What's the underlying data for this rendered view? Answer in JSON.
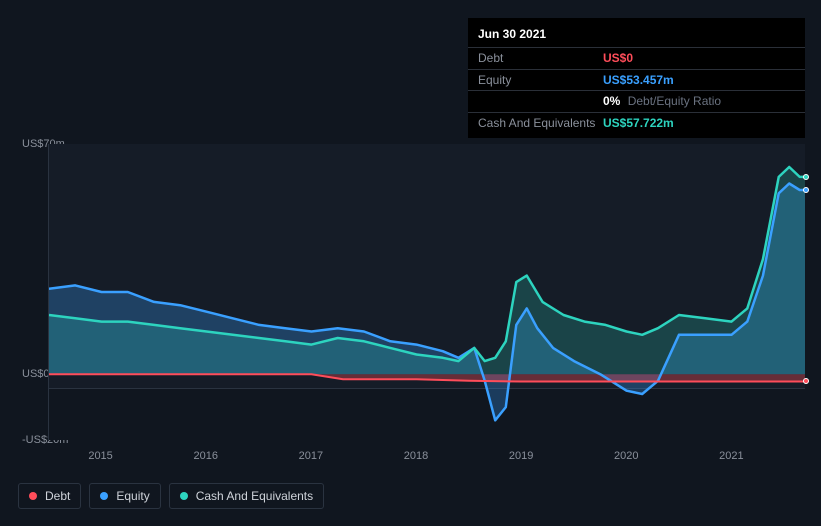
{
  "tooltip": {
    "date": "Jun 30 2021",
    "debt_label": "Debt",
    "debt_value": "US$0",
    "equity_label": "Equity",
    "equity_value": "US$53.457m",
    "ratio_value": "0%",
    "ratio_label": "Debt/Equity Ratio",
    "cash_label": "Cash And Equivalents",
    "cash_value": "US$57.722m"
  },
  "chart": {
    "type": "area",
    "y_range": [
      -20,
      70
    ],
    "y_ticks": [
      {
        "value": 70,
        "label": "US$70m"
      },
      {
        "value": 0,
        "label": "US$0"
      },
      {
        "value": -20,
        "label": "-US$20m"
      }
    ],
    "x_domain_years": [
      2014.5,
      2021.7
    ],
    "x_ticks": [
      "2015",
      "2016",
      "2017",
      "2018",
      "2019",
      "2020",
      "2021"
    ],
    "background_color": "#151c27",
    "page_background_color": "#10161f",
    "grid_color": "#2a3340",
    "series": {
      "debt": {
        "label": "Debt",
        "color": "#ff4d5a",
        "fill_opacity": 0.35,
        "stroke_width": 2,
        "data": [
          [
            2014.5,
            0
          ],
          [
            2015,
            0
          ],
          [
            2015.5,
            0
          ],
          [
            2016,
            0
          ],
          [
            2016.5,
            0
          ],
          [
            2017,
            0
          ],
          [
            2017.3,
            -1.5
          ],
          [
            2017.7,
            -1.5
          ],
          [
            2018,
            -1.5
          ],
          [
            2018.5,
            -2
          ],
          [
            2019,
            -2.2
          ],
          [
            2019.5,
            -2.2
          ],
          [
            2020,
            -2.2
          ],
          [
            2020.5,
            -2.2
          ],
          [
            2021,
            -2.2
          ],
          [
            2021.5,
            -2.2
          ],
          [
            2021.7,
            -2.2
          ]
        ]
      },
      "equity": {
        "label": "Equity",
        "color": "#3aa0ff",
        "fill_opacity": 0.28,
        "stroke_width": 2.5,
        "data": [
          [
            2014.5,
            26
          ],
          [
            2014.75,
            27
          ],
          [
            2015,
            25
          ],
          [
            2015.25,
            25
          ],
          [
            2015.5,
            22
          ],
          [
            2015.75,
            21
          ],
          [
            2016,
            19
          ],
          [
            2016.25,
            17
          ],
          [
            2016.5,
            15
          ],
          [
            2016.75,
            14
          ],
          [
            2017,
            13
          ],
          [
            2017.25,
            14
          ],
          [
            2017.5,
            13
          ],
          [
            2017.75,
            10
          ],
          [
            2018,
            9
          ],
          [
            2018.25,
            7
          ],
          [
            2018.4,
            5
          ],
          [
            2018.55,
            8
          ],
          [
            2018.65,
            -2
          ],
          [
            2018.75,
            -14
          ],
          [
            2018.85,
            -10
          ],
          [
            2018.95,
            15
          ],
          [
            2019.05,
            20
          ],
          [
            2019.15,
            14
          ],
          [
            2019.3,
            8
          ],
          [
            2019.5,
            4
          ],
          [
            2019.75,
            0
          ],
          [
            2020,
            -5
          ],
          [
            2020.15,
            -6
          ],
          [
            2020.3,
            -2
          ],
          [
            2020.5,
            12
          ],
          [
            2020.75,
            12
          ],
          [
            2021,
            12
          ],
          [
            2021.15,
            16
          ],
          [
            2021.3,
            30
          ],
          [
            2021.45,
            55
          ],
          [
            2021.55,
            58
          ],
          [
            2021.65,
            56
          ],
          [
            2021.7,
            56
          ]
        ]
      },
      "cash": {
        "label": "Cash And Equivalents",
        "color": "#2dd4bf",
        "fill_opacity": 0.22,
        "stroke_width": 2.5,
        "data": [
          [
            2014.5,
            18
          ],
          [
            2014.75,
            17
          ],
          [
            2015,
            16
          ],
          [
            2015.25,
            16
          ],
          [
            2015.5,
            15
          ],
          [
            2015.75,
            14
          ],
          [
            2016,
            13
          ],
          [
            2016.25,
            12
          ],
          [
            2016.5,
            11
          ],
          [
            2016.75,
            10
          ],
          [
            2017,
            9
          ],
          [
            2017.25,
            11
          ],
          [
            2017.5,
            10
          ],
          [
            2017.75,
            8
          ],
          [
            2018,
            6
          ],
          [
            2018.25,
            5
          ],
          [
            2018.4,
            4
          ],
          [
            2018.55,
            8
          ],
          [
            2018.65,
            4
          ],
          [
            2018.75,
            5
          ],
          [
            2018.85,
            10
          ],
          [
            2018.95,
            28
          ],
          [
            2019.05,
            30
          ],
          [
            2019.2,
            22
          ],
          [
            2019.4,
            18
          ],
          [
            2019.6,
            16
          ],
          [
            2019.8,
            15
          ],
          [
            2020,
            13
          ],
          [
            2020.15,
            12
          ],
          [
            2020.3,
            14
          ],
          [
            2020.5,
            18
          ],
          [
            2020.75,
            17
          ],
          [
            2021,
            16
          ],
          [
            2021.15,
            20
          ],
          [
            2021.3,
            35
          ],
          [
            2021.45,
            60
          ],
          [
            2021.55,
            63
          ],
          [
            2021.65,
            60
          ],
          [
            2021.7,
            60
          ]
        ]
      }
    },
    "end_markers": [
      {
        "series": "cash",
        "x": 2021.7,
        "y": 60
      },
      {
        "series": "equity",
        "x": 2021.7,
        "y": 56
      },
      {
        "series": "debt",
        "x": 2021.7,
        "y": -2.2
      }
    ]
  },
  "legend": {
    "items": [
      {
        "key": "debt",
        "label": "Debt",
        "color": "#ff4d5a"
      },
      {
        "key": "equity",
        "label": "Equity",
        "color": "#3aa0ff"
      },
      {
        "key": "cash",
        "label": "Cash And Equivalents",
        "color": "#2dd4bf"
      }
    ]
  }
}
